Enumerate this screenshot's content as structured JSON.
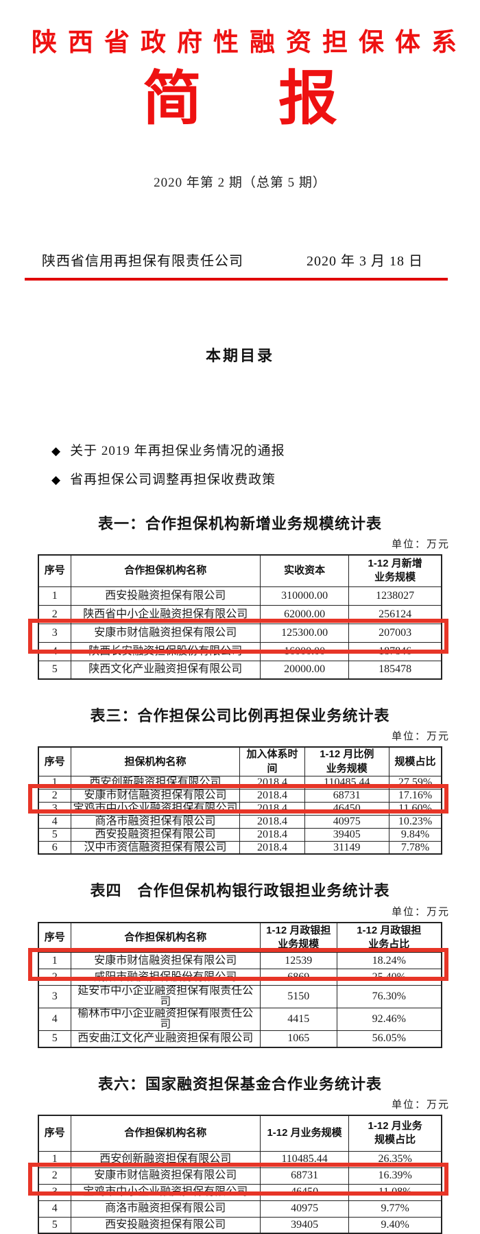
{
  "colors": {
    "title_red": "#ee1111",
    "rule_red": "#e00000",
    "highlight_red": "#e73527"
  },
  "masthead": {
    "org_title": "陕西省政府性融资担保体系",
    "bulletin_chars": [
      "简",
      "报"
    ],
    "issue_line": "2020 年第 2 期（总第 5 期）",
    "publisher": "陕西省信用再担保有限责任公司",
    "date": "2020 年 3 月 18 日"
  },
  "toc": {
    "heading": "本期目录",
    "bullet_glyph": "◆",
    "items": [
      "关于 2019 年再担保业务情况的通报",
      "省再担保公司调整再担保收费政策"
    ]
  },
  "unit_note": "单位：万元",
  "tables": [
    {
      "title": "表一：合作担保机构新增业务规模统计表",
      "headers": [
        "序号",
        "合作担保机构名称",
        "实收资本",
        "1-12 月新增\n业务规模"
      ],
      "col_widths": [
        "8%",
        "47%",
        "22%",
        "23%"
      ],
      "rows": [
        [
          "1",
          "西安投融资担保有限公司",
          "310000.00",
          "1238027"
        ],
        [
          "2",
          "陕西省中小企业融资担保有限公司",
          "62000.00",
          "256124"
        ],
        [
          "3",
          "安康市财信融资担保有限公司",
          "125300.00",
          "207003"
        ],
        [
          "4",
          "陕西长安融资担保股份有限公司",
          "16000.00",
          "187846"
        ],
        [
          "5",
          "陕西文化产业融资担保有限公司",
          "20000.00",
          "185478"
        ]
      ],
      "highlight_row": 2
    },
    {
      "title": "表三：合作担保公司比例再担保业务统计表",
      "headers": [
        "序号",
        "担保机构名称",
        "加入体系时间",
        "1-12 月比例\n业务规模",
        "规模占比"
      ],
      "col_widths": [
        "8%",
        "42%",
        "16%",
        "21%",
        "13%"
      ],
      "rows": [
        [
          "1",
          "西安创新融资担保有限公司",
          "2018.4",
          "110485.44",
          "27.59%"
        ],
        [
          "2",
          "安康市财信融资担保有限公司",
          "2018.4",
          "68731",
          "17.16%"
        ],
        [
          "3",
          "宝鸡市中小企业融资担保有限公司",
          "2018.4",
          "46450",
          "11.60%"
        ],
        [
          "4",
          "商洛市融资担保有限公司",
          "2018.4",
          "40975",
          "10.23%"
        ],
        [
          "5",
          "西安投融资担保有限公司",
          "2018.4",
          "39405",
          "9.84%"
        ],
        [
          "6",
          "汉中市资信融资担保有限公司",
          "2018.4",
          "31149",
          "7.78%"
        ]
      ],
      "highlight_row": 1
    },
    {
      "title": "表四　合作但保机构银行政银担业务统计表",
      "headers": [
        "序号",
        "合作担保机构名称",
        "1-12 月政银担\n业务规模",
        "1-12 月政银担\n业务占比"
      ],
      "col_widths": [
        "8%",
        "47%",
        "19%",
        "26%"
      ],
      "rows": [
        [
          "1",
          "安康市财信融资担保有限公司",
          "12539",
          "18.24%"
        ],
        [
          "2",
          "咸阳市融资担保股份有限公司",
          "6869",
          "25.40%"
        ],
        [
          "3",
          "延安市中小企业融资担保有限责任公司",
          "5150",
          "76.30%"
        ],
        [
          "4",
          "榆林市中小企业融资担保有限责任公司",
          "4415",
          "92.46%"
        ],
        [
          "5",
          "西安曲江文化产业融资担保有限公司",
          "1065",
          "56.05%"
        ]
      ],
      "highlight_row": 0
    },
    {
      "title": "表六：国家融资担保基金合作业务统计表",
      "headers": [
        "序号",
        "合作担保机构名称",
        "1-12 月业务规模",
        "1-12 月业务\n规模占比"
      ],
      "col_widths": [
        "8%",
        "47%",
        "22%",
        "23%"
      ],
      "rows": [
        [
          "1",
          "西安创新融资担保有限公司",
          "110485.44",
          "26.35%"
        ],
        [
          "2",
          "安康市财信融资担保有限公司",
          "68731",
          "16.39%"
        ],
        [
          "3",
          "宝鸡市中小企业融资担保有限公司",
          "46450",
          "11.08%"
        ],
        [
          "4",
          "商洛市融资担保有限公司",
          "40975",
          "9.77%"
        ],
        [
          "5",
          "西安投融资担保有限公司",
          "39405",
          "9.40%"
        ]
      ],
      "highlight_row": 1
    }
  ]
}
